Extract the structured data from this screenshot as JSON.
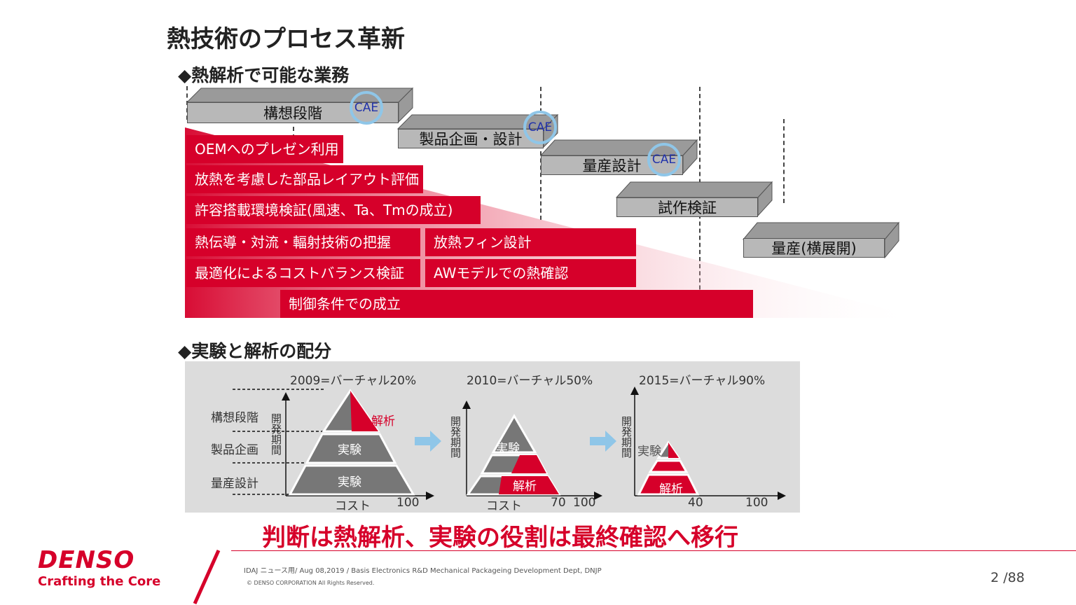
{
  "title": "熱技術のプロセス革新",
  "section1": {
    "heading": "◆熱解析で可能な業務",
    "stages": [
      {
        "label": "構想段階",
        "cae": "CAE"
      },
      {
        "label": "製品企画・設計",
        "cae": "CAE"
      },
      {
        "label": "量産設計",
        "cae": "CAE"
      },
      {
        "label": "試作検証"
      },
      {
        "label": "量産(横展開)"
      }
    ],
    "tasks": [
      "OEMへのプレゼン利用",
      "放熱を考慮した部品レイアウト評価",
      "許容搭載環境検証(風速、Ta、Tmの成立)",
      "熱伝導・対流・輻射技術の把握",
      "放熱フィン設計",
      "最適化によるコストバランス検証",
      "AWモデルでの熱確認",
      "制御条件での成立"
    ]
  },
  "section2": {
    "heading": "◆実験と解析の配分",
    "charts": [
      {
        "title": "2009=バーチャル20%",
        "ylabel": "開発期間",
        "xlabel": "コスト",
        "xticks": [
          "100"
        ],
        "rows": [
          "構想段階",
          "製品企画",
          "量産設計"
        ],
        "labels": [
          "解析",
          "実験",
          "実験"
        ]
      },
      {
        "title": "2010=バーチャル50%",
        "ylabel": "開発期間",
        "xlabel": "コスト",
        "xticks": [
          "70",
          "100"
        ],
        "labels": [
          "実験",
          "解析"
        ]
      },
      {
        "title": "2015=バーチャル90%",
        "ylabel": "開発期間",
        "xticks": [
          "40",
          "100"
        ],
        "labels": [
          "実験",
          "解析"
        ]
      }
    ]
  },
  "conclusion": "判断は熱解析、実験の役割は最終確認へ移行",
  "footer": {
    "brand": "DENSO",
    "tagline": "Crafting the Core",
    "info": "IDAJ ニュース用/ Aug 08,2019 / Basis Electronics R&D  Mechanical Packageing Development Dept, DNJP",
    "copyright": "© DENSO CORPORATION All Rights Reserved.",
    "page": "2 /88"
  },
  "colors": {
    "accent": "#d6002a",
    "gray_box": "#b8b8b8",
    "panel": "#dcdcdc",
    "arrow": "#8fc6e8"
  }
}
